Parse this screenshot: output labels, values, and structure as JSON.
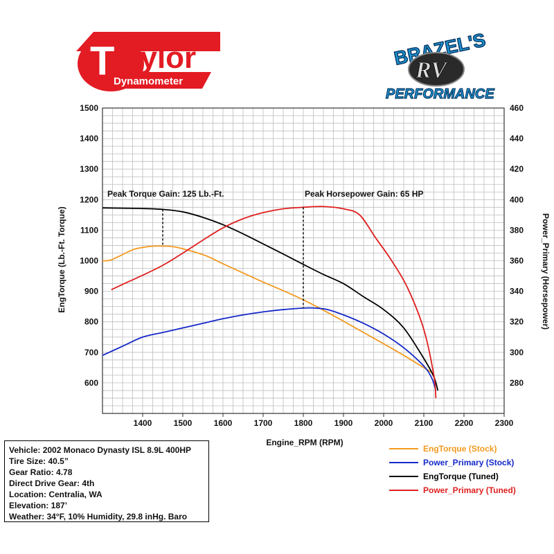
{
  "logos": {
    "taylor": {
      "word": "aylor",
      "initial": "T",
      "sub": "Dynamometer",
      "color": "#e31b23"
    },
    "brazels": {
      "top": "BRAZEL'S",
      "middle": "RV",
      "bottom": "PERFORMANCE",
      "color": "#1d97d4"
    }
  },
  "chart_data": {
    "type": "line",
    "xlabel": "Engine_RPM (RPM)",
    "ylabel": "EngTorque (Lb.-Ft. Torque)",
    "y2label": "Power_Primary (Horsepower)",
    "xlim": [
      1300,
      2300
    ],
    "ylim": [
      500,
      1500
    ],
    "y2lim": [
      260,
      460
    ],
    "x_ticks": [
      "1400",
      "1500",
      "1600",
      "1700",
      "1800",
      "1900",
      "2000",
      "2100",
      "2200",
      "2300"
    ],
    "y_ticks": [
      "600",
      "700",
      "800",
      "900",
      "1000",
      "1100",
      "1200",
      "1300",
      "1400",
      "1500"
    ],
    "y2_ticks": [
      "280",
      "300",
      "320",
      "340",
      "360",
      "380",
      "400",
      "420",
      "440",
      "460"
    ],
    "grid": true,
    "legend_position": "bottom-right",
    "series": [
      {
        "name": "EngTorque (Stock)",
        "axis": "left",
        "color": "#f39a1e",
        "points": [
          [
            1300,
            1000
          ],
          [
            1320,
            1002
          ],
          [
            1350,
            1020
          ],
          [
            1380,
            1038
          ],
          [
            1420,
            1047
          ],
          [
            1450,
            1048
          ],
          [
            1480,
            1045
          ],
          [
            1520,
            1032
          ],
          [
            1560,
            1015
          ],
          [
            1600,
            990
          ],
          [
            1650,
            960
          ],
          [
            1700,
            930
          ],
          [
            1750,
            902
          ],
          [
            1800,
            872
          ],
          [
            1850,
            838
          ],
          [
            1900,
            802
          ],
          [
            1950,
            765
          ],
          [
            2000,
            728
          ],
          [
            2050,
            690
          ],
          [
            2100,
            650
          ],
          [
            2125,
            630
          ]
        ]
      },
      {
        "name": "Power_Primary (Stock)",
        "axis": "right",
        "color": "#1428c8",
        "points": [
          [
            1300,
            298
          ],
          [
            1350,
            304
          ],
          [
            1400,
            310
          ],
          [
            1450,
            313
          ],
          [
            1500,
            316
          ],
          [
            1550,
            319
          ],
          [
            1600,
            322
          ],
          [
            1650,
            324.5
          ],
          [
            1700,
            326.5
          ],
          [
            1750,
            328
          ],
          [
            1800,
            329
          ],
          [
            1830,
            329
          ],
          [
            1860,
            328
          ],
          [
            1900,
            324.5
          ],
          [
            1950,
            319
          ],
          [
            2000,
            312
          ],
          [
            2050,
            303
          ],
          [
            2100,
            291
          ],
          [
            2120,
            283
          ],
          [
            2130,
            275
          ]
        ]
      },
      {
        "name": "EngTorque (Tuned)",
        "axis": "left",
        "color": "#000000",
        "points": [
          [
            1300,
            1173
          ],
          [
            1350,
            1172
          ],
          [
            1400,
            1171
          ],
          [
            1450,
            1168
          ],
          [
            1500,
            1160
          ],
          [
            1550,
            1142
          ],
          [
            1600,
            1118
          ],
          [
            1650,
            1088
          ],
          [
            1700,
            1055
          ],
          [
            1750,
            1022
          ],
          [
            1800,
            988
          ],
          [
            1850,
            955
          ],
          [
            1900,
            925
          ],
          [
            1950,
            882
          ],
          [
            2000,
            840
          ],
          [
            2050,
            780
          ],
          [
            2100,
            680
          ],
          [
            2125,
            620
          ],
          [
            2135,
            575
          ]
        ]
      },
      {
        "name": "Power_Primary (Tuned)",
        "axis": "right",
        "color": "#e01e1e",
        "points": [
          [
            1322,
            341
          ],
          [
            1350,
            344.5
          ],
          [
            1400,
            350.5
          ],
          [
            1450,
            357
          ],
          [
            1500,
            365
          ],
          [
            1550,
            373.5
          ],
          [
            1600,
            381.5
          ],
          [
            1650,
            387.5
          ],
          [
            1700,
            391.5
          ],
          [
            1750,
            394
          ],
          [
            1800,
            395
          ],
          [
            1850,
            395.5
          ],
          [
            1900,
            394
          ],
          [
            1940,
            390
          ],
          [
            1980,
            375
          ],
          [
            2020,
            360
          ],
          [
            2060,
            342
          ],
          [
            2100,
            315
          ],
          [
            2125,
            285
          ],
          [
            2130,
            270
          ]
        ]
      }
    ],
    "annotations": [
      {
        "text": "Peak Torque Gain: 125 Lb.-Ft.",
        "x": 1450,
        "y_from": 1048,
        "y_to": 1168,
        "axis": "left"
      },
      {
        "text": "Peak Horsepower Gain: 65 HP",
        "x": 1800,
        "y_from": 329,
        "y_to": 395,
        "axis": "right"
      }
    ]
  },
  "info": {
    "vehicle": "Vehicle: 2002 Monaco Dynasty ISL 8.9L 400HP",
    "tire_size": "Tire Size: 40.5”",
    "gear_ratio": "Gear Ratio: 4.78",
    "direct_drive": "Direct Drive Gear: 4th",
    "location": "Location: Centralia, WA",
    "elevation": "Elevation: 187’",
    "weather": "Weather: 34°F, 10% Humidity, 29.8 inHg. Baro"
  }
}
